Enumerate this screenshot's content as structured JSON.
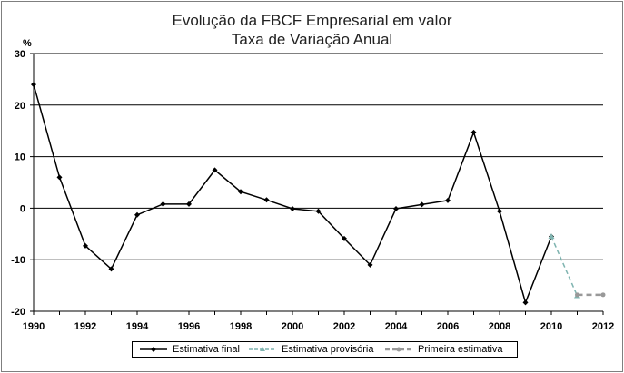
{
  "chart_data": {
    "type": "line",
    "title": "Evolução da FBCF Empresarial em valor",
    "subtitle": "Taxa de Variação Anual",
    "ylabel": "%",
    "ylim": [
      -20,
      30
    ],
    "yticks": [
      30,
      20,
      10,
      0,
      -10,
      -20
    ],
    "xlim": [
      1990,
      2012
    ],
    "xticks": [
      1990,
      1992,
      1994,
      1996,
      1998,
      2000,
      2002,
      2004,
      2006,
      2008,
      2010,
      2012
    ],
    "grid": "horizontal",
    "legend_position": "bottom",
    "series": [
      {
        "name": "Estimativa final",
        "color": "#000000",
        "style": "solid",
        "marker": "diamond",
        "x": [
          1990,
          1991,
          1992,
          1993,
          1994,
          1995,
          1996,
          1997,
          1998,
          1999,
          2000,
          2001,
          2002,
          2003,
          2004,
          2005,
          2006,
          2007,
          2008,
          2009,
          2010
        ],
        "values": [
          24,
          6,
          -7.3,
          -11.8,
          -1.3,
          0.8,
          0.8,
          7.4,
          3.2,
          1.6,
          -0.1,
          -0.6,
          -5.9,
          -11,
          -0.1,
          0.7,
          1.5,
          14.7,
          -0.6,
          -18.3,
          -5.5
        ]
      },
      {
        "name": "Estimativa provisória",
        "color": "#7fb4b0",
        "style": "dashed",
        "marker": "triangle",
        "x": [
          2010,
          2011
        ],
        "values": [
          -5.5,
          -17
        ]
      },
      {
        "name": "Primeira estimativa",
        "color": "#999999",
        "style": "dashed",
        "marker": "circle",
        "x": [
          2011,
          2012
        ],
        "values": [
          -16.8,
          -16.8
        ]
      }
    ]
  }
}
